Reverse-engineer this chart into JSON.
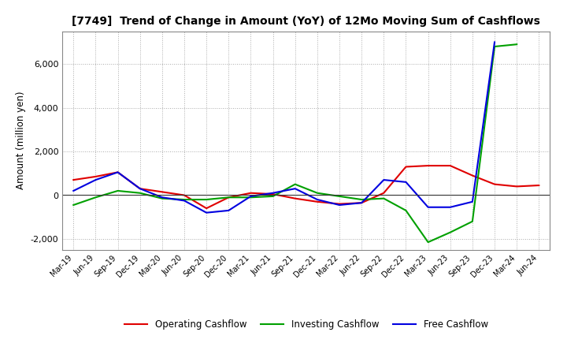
{
  "title": "[7749]  Trend of Change in Amount (YoY) of 12Mo Moving Sum of Cashflows",
  "ylabel": "Amount (million yen)",
  "x_labels": [
    "Mar-19",
    "Jun-19",
    "Sep-19",
    "Dec-19",
    "Mar-20",
    "Jun-20",
    "Sep-20",
    "Dec-20",
    "Mar-21",
    "Jun-21",
    "Sep-21",
    "Dec-21",
    "Mar-22",
    "Jun-22",
    "Sep-22",
    "Dec-22",
    "Mar-23",
    "Jun-23",
    "Sep-23",
    "Dec-23",
    "Mar-24",
    "Jun-24"
  ],
  "operating": [
    700,
    850,
    1050,
    300,
    150,
    0,
    -600,
    -100,
    100,
    50,
    -150,
    -300,
    -400,
    -350,
    100,
    1300,
    1350,
    1350,
    900,
    500,
    400,
    450
  ],
  "investing": [
    -450,
    -100,
    200,
    100,
    -150,
    -200,
    -200,
    -100,
    -100,
    -50,
    500,
    100,
    -50,
    -200,
    -150,
    -700,
    -2150,
    -1700,
    -1200,
    6800,
    6900,
    null
  ],
  "free": [
    200,
    700,
    1050,
    300,
    -100,
    -250,
    -800,
    -700,
    -50,
    100,
    300,
    -200,
    -450,
    -350,
    700,
    600,
    -550,
    -550,
    -300,
    7000,
    null,
    null
  ],
  "operating_color": "#e00000",
  "investing_color": "#00a000",
  "free_color": "#0000e0",
  "ylim": [
    -2500,
    7500
  ],
  "yticks": [
    -2000,
    0,
    2000,
    4000,
    6000
  ],
  "background_color": "#ffffff",
  "grid_color": "#aaaaaa",
  "legend_labels": [
    "Operating Cashflow",
    "Investing Cashflow",
    "Free Cashflow"
  ]
}
